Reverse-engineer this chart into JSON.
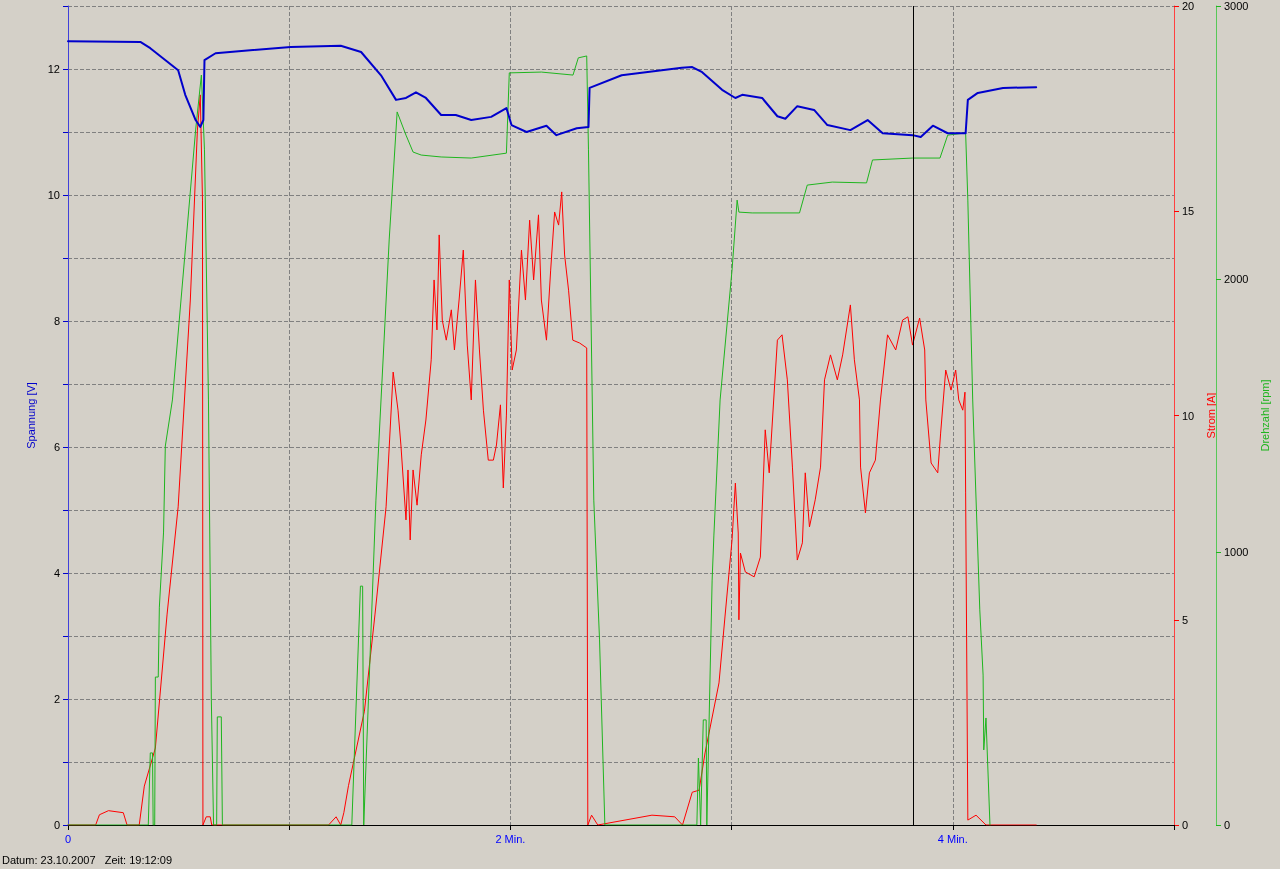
{
  "chart_data": {
    "type": "line",
    "ylabel": "Spannung [V]",
    "y2label": "Strom [A]",
    "y3label": "Drehzahl [rpm]",
    "annotations": [
      "Datum: 23.10.2007   Zeit: 19:12:09"
    ],
    "xlim": [
      0,
      5
    ],
    "xticks": [
      0,
      {
        "value": 1,
        "label": null
      },
      {
        "value": 2,
        "label": "2 Min."
      },
      {
        "value": 3,
        "label": null
      },
      {
        "value": 4,
        "label": "4 Min."
      },
      {
        "value": 5,
        "label": null
      }
    ],
    "ylim": [
      0,
      13
    ],
    "yticks": [
      0,
      {
        "value": 1,
        "label": null
      },
      2,
      {
        "value": 3,
        "label": null
      },
      4,
      {
        "value": 5,
        "label": null
      },
      6,
      {
        "value": 7,
        "label": null
      },
      8,
      {
        "value": 9,
        "label": null
      },
      10,
      {
        "value": 11,
        "label": null
      },
      12,
      {
        "value": 13,
        "label": null
      }
    ],
    "y2lim": [
      0,
      20
    ],
    "y2ticks": [
      0,
      5,
      10,
      15,
      20
    ],
    "y3lim": [
      0,
      3000
    ],
    "y3ticks": [
      0,
      1000,
      2000,
      3000
    ],
    "grid": true,
    "marker": "none",
    "line_style": "solid",
    "ref_lines": [
      {
        "axis": "x",
        "value": 3.82,
        "label": null,
        "color": "#000000",
        "line_style": "solid"
      }
    ],
    "series": [
      {
        "color": "#0000cc",
        "x": [
          0,
          0.327,
          0.372,
          0.498,
          0.53,
          0.577,
          0.598,
          0.612,
          0.617,
          0.667,
          1.007,
          1.233,
          1.325,
          1.415,
          1.483,
          1.528,
          1.573,
          1.618,
          1.687,
          1.753,
          1.823,
          1.913,
          1.982,
          2.005,
          2.073,
          2.163,
          2.208,
          2.3,
          2.353,
          2.358,
          2.503,
          2.775,
          2.822,
          2.867,
          2.957,
          3.017,
          3.048,
          3.138,
          3.207,
          3.243,
          3.297,
          3.373,
          3.433,
          3.537,
          3.615,
          3.683,
          3.818,
          3.855,
          3.91,
          3.977,
          4.058,
          4.068,
          4.113,
          4.227,
          4.377
        ],
        "values": [
          12.44,
          12.43,
          12.33,
          11.98,
          11.59,
          11.19,
          11.08,
          11.19,
          12.14,
          12.25,
          12.35,
          12.37,
          12.27,
          11.9,
          11.51,
          11.54,
          11.63,
          11.54,
          11.27,
          11.27,
          11.19,
          11.24,
          11.38,
          11.11,
          11.0,
          11.1,
          10.95,
          11.06,
          11.08,
          11.7,
          11.9,
          12.02,
          12.03,
          11.95,
          11.67,
          11.54,
          11.59,
          11.54,
          11.25,
          11.21,
          11.41,
          11.35,
          11.11,
          11.03,
          11.19,
          10.98,
          10.95,
          10.92,
          11.1,
          10.98,
          10.98,
          11.51,
          11.62,
          11.7,
          11.71
        ]
      },
      {
        "color": "#ff0000",
        "axis": "y2",
        "x": [
          0,
          0.125,
          0.142,
          0.183,
          0.25,
          0.267,
          0.322,
          0.345,
          0.395,
          0.448,
          0.498,
          0.553,
          0.585,
          0.598,
          0.608,
          0.61,
          0.625,
          0.643,
          0.65,
          1.178,
          1.212,
          1.233,
          1.247,
          1.268,
          1.34,
          1.388,
          1.438,
          1.47,
          1.492,
          1.505,
          1.528,
          1.537,
          1.547,
          1.56,
          1.578,
          1.597,
          1.618,
          1.642,
          1.655,
          1.668,
          1.678,
          1.692,
          1.71,
          1.733,
          1.747,
          1.768,
          1.787,
          1.805,
          1.823,
          1.842,
          1.86,
          1.878,
          1.9,
          1.923,
          1.937,
          1.955,
          1.968,
          1.982,
          1.995,
          2.008,
          2.027,
          2.05,
          2.068,
          2.087,
          2.105,
          2.127,
          2.14,
          2.163,
          2.182,
          2.2,
          2.218,
          2.232,
          2.245,
          2.263,
          2.282,
          2.313,
          2.345,
          2.35,
          2.367,
          2.395,
          2.64,
          2.743,
          2.778,
          2.822,
          2.853,
          2.88,
          2.943,
          2.97,
          3.002,
          3.017,
          3.03,
          3.033,
          3.04,
          3.062,
          3.102,
          3.13,
          3.152,
          3.17,
          3.207,
          3.228,
          3.252,
          3.275,
          3.297,
          3.32,
          3.333,
          3.352,
          3.378,
          3.402,
          3.42,
          3.447,
          3.478,
          3.502,
          3.537,
          3.555,
          3.578,
          3.583,
          3.605,
          3.623,
          3.65,
          3.673,
          3.705,
          3.742,
          3.773,
          3.797,
          3.818,
          3.85,
          3.873,
          3.878,
          3.902,
          3.932,
          3.945,
          3.968,
          3.992,
          4.013,
          4.027,
          4.045,
          4.055,
          4.058,
          4.068,
          4.105,
          4.15,
          4.377
        ],
        "values": [
          0,
          0,
          0.25,
          0.35,
          0.3,
          0,
          0,
          0.95,
          1.88,
          5.15,
          7.77,
          12.82,
          16.97,
          17.83,
          15.26,
          0,
          0.2,
          0.2,
          0,
          0,
          0.2,
          0,
          0.3,
          0.96,
          2.78,
          5.15,
          7.77,
          11.06,
          10.13,
          9.28,
          7.45,
          8.67,
          6.96,
          8.67,
          7.81,
          9.04,
          9.89,
          11.36,
          13.31,
          12.09,
          14.41,
          12.33,
          11.84,
          12.58,
          11.6,
          12.82,
          14.04,
          11.72,
          10.38,
          13.31,
          11.6,
          10.13,
          8.91,
          8.91,
          9.28,
          10.26,
          8.23,
          10.01,
          13.31,
          11.11,
          11.6,
          14.04,
          12.82,
          14.77,
          13.31,
          14.9,
          12.82,
          11.84,
          13.55,
          14.97,
          14.65,
          15.46,
          13.92,
          13.06,
          11.84,
          11.77,
          11.65,
          0,
          0.24,
          0,
          0.24,
          0.2,
          0,
          0.8,
          0.85,
          1.76,
          3.47,
          5.08,
          6.96,
          8.35,
          7.13,
          5.01,
          6.64,
          6.18,
          6.06,
          6.54,
          9.65,
          8.6,
          11.84,
          11.97,
          10.87,
          8.74,
          6.47,
          6.89,
          8.6,
          7.28,
          7.94,
          8.74,
          10.87,
          11.48,
          10.87,
          11.48,
          12.7,
          11.36,
          10.38,
          8.74,
          7.62,
          8.6,
          8.91,
          10.38,
          11.97,
          11.6,
          12.33,
          12.41,
          11.72,
          12.38,
          11.6,
          10.38,
          8.84,
          8.6,
          9.57,
          11.11,
          10.62,
          11.11,
          10.38,
          10.13,
          10.57,
          8.11,
          0.12,
          0.24,
          0,
          0
        ]
      },
      {
        "color": "#1fb51f",
        "axis": "y3",
        "x": [
          0,
          0.363,
          0.372,
          0.382,
          0.385,
          0.392,
          0.395,
          0.408,
          0.413,
          0.432,
          0.44,
          0.472,
          0.577,
          0.603,
          0.617,
          0.635,
          0.648,
          0.658,
          0.672,
          0.675,
          0.693,
          0.698,
          1.283,
          1.322,
          1.332,
          1.337,
          1.34,
          1.392,
          1.452,
          1.488,
          1.528,
          1.56,
          1.597,
          1.687,
          1.823,
          1.982,
          1.995,
          2.14,
          2.283,
          2.307,
          2.345,
          2.353,
          2.377,
          2.403,
          2.427,
          2.843,
          2.85,
          2.86,
          2.872,
          2.885,
          2.888,
          2.912,
          2.92,
          2.948,
          3.002,
          3.025,
          3.033,
          3.093,
          3.307,
          3.342,
          3.455,
          3.61,
          3.637,
          3.818,
          3.942,
          3.977,
          4.058,
          4.068,
          4.09,
          4.122,
          4.137,
          4.14,
          4.15,
          4.168
        ],
        "values": [
          0,
          0,
          264,
          264,
          0,
          0,
          542,
          542,
          798,
          1073,
          1388,
          1557,
          2546,
          2747,
          2473,
          1557,
          458,
          0,
          0,
          396,
          396,
          0,
          0,
          875,
          875,
          0,
          0,
          1190,
          2143,
          2612,
          2527,
          2465,
          2454,
          2447,
          2443,
          2461,
          2755,
          2758,
          2747,
          2810,
          2817,
          2473,
          1190,
          678,
          0,
          0,
          245,
          0,
          385,
          385,
          0,
          897,
          1062,
          1557,
          2033,
          2289,
          2245,
          2242,
          2242,
          2344,
          2355,
          2352,
          2436,
          2443,
          2443,
          2527,
          2535,
          2289,
          1557,
          788,
          549,
          275,
          392,
          0
        ]
      }
    ]
  }
}
